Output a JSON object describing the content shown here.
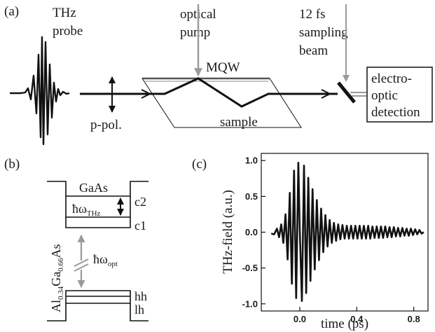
{
  "panel_a": {
    "panel_label": "(a)",
    "thz_probe_line1": "THz",
    "thz_probe_line2": "probe",
    "optical_pump_line1": "optical",
    "optical_pump_line2": "pump",
    "sampling_line1": "12 fs",
    "sampling_line2": "sampling",
    "sampling_line3": "beam",
    "mqw": "MQW",
    "polarization": "p-pol.",
    "sample": "sample",
    "detection_line1": "electro-",
    "detection_line2": "optic",
    "detection_line3": "detection",
    "colors": {
      "beam": "#111111",
      "pump": "#9a9a9a"
    }
  },
  "panel_b": {
    "panel_label": "(b)",
    "well_material": "GaAs",
    "barrier_material": {
      "al": "Al",
      "al_sub": "0.34",
      "ga": "Ga",
      "ga_sub": "0.66",
      "as": "As"
    },
    "levels": {
      "c2": "c2",
      "c1": "c1",
      "hh": "hh",
      "lh": "lh"
    },
    "thz_transition": {
      "symbol": "ħω",
      "sub": "THz"
    },
    "optical_transition": {
      "symbol": "ħω",
      "sub": "opt"
    },
    "colors": {
      "optical_arrow": "#9a9a9a"
    }
  },
  "panel_c": {
    "panel_label": "(c)"
  },
  "chart_data": {
    "type": "line",
    "title": "",
    "xlabel": "time (ps)",
    "ylabel": "THz-field (a.u.)",
    "xlim": [
      -0.27,
      0.9
    ],
    "ylim": [
      -1.1,
      1.1
    ],
    "xticks": [
      0.0,
      0.4,
      0.8
    ],
    "xtick_labels": [
      "0.0",
      "0.4",
      "0.8"
    ],
    "yticks": [
      1.0,
      0.5,
      0.0,
      -0.5,
      -1.0
    ],
    "ytick_labels": [
      "1.0",
      "0.5",
      "0.0",
      "-0.5",
      "-1.0"
    ],
    "grid": false,
    "series": [
      {
        "x": [
          -0.2,
          -0.18,
          -0.16,
          -0.145,
          -0.13,
          -0.115,
          -0.1,
          -0.085,
          -0.07,
          -0.055,
          -0.04,
          -0.025,
          -0.01,
          0.0,
          0.015,
          0.03,
          0.045,
          0.06,
          0.075,
          0.09,
          0.105,
          0.12,
          0.135,
          0.15,
          0.165,
          0.18,
          0.195,
          0.21,
          0.225,
          0.24,
          0.255,
          0.27,
          0.285,
          0.3,
          0.315,
          0.33,
          0.345,
          0.36,
          0.375,
          0.39,
          0.405,
          0.42,
          0.435,
          0.45,
          0.465,
          0.48,
          0.495,
          0.51,
          0.525,
          0.54,
          0.555,
          0.57,
          0.585,
          0.6,
          0.615,
          0.63,
          0.645,
          0.66,
          0.675,
          0.69,
          0.705,
          0.72,
          0.735,
          0.75,
          0.765,
          0.78,
          0.795,
          0.81,
          0.825,
          0.84,
          0.855,
          0.87
        ],
        "y": [
          -0.02,
          -0.03,
          0.05,
          -0.07,
          0.11,
          -0.15,
          0.25,
          -0.38,
          0.55,
          -0.72,
          0.86,
          -0.92,
          0.97,
          0.05,
          -0.96,
          0.93,
          -0.85,
          0.76,
          -0.68,
          0.6,
          -0.52,
          0.45,
          -0.39,
          0.33,
          -0.28,
          0.24,
          -0.2,
          0.17,
          -0.15,
          0.13,
          -0.12,
          0.11,
          -0.1,
          0.1,
          -0.09,
          0.09,
          -0.09,
          0.09,
          -0.09,
          0.09,
          -0.09,
          0.09,
          -0.09,
          0.09,
          -0.09,
          0.09,
          -0.09,
          0.08,
          -0.08,
          0.08,
          -0.08,
          0.08,
          -0.08,
          0.08,
          -0.07,
          0.07,
          -0.07,
          0.07,
          -0.06,
          0.06,
          -0.06,
          0.06,
          -0.05,
          0.05,
          -0.05,
          0.05,
          -0.04,
          0.04,
          -0.03,
          0.03,
          -0.02,
          0.0
        ]
      }
    ]
  }
}
